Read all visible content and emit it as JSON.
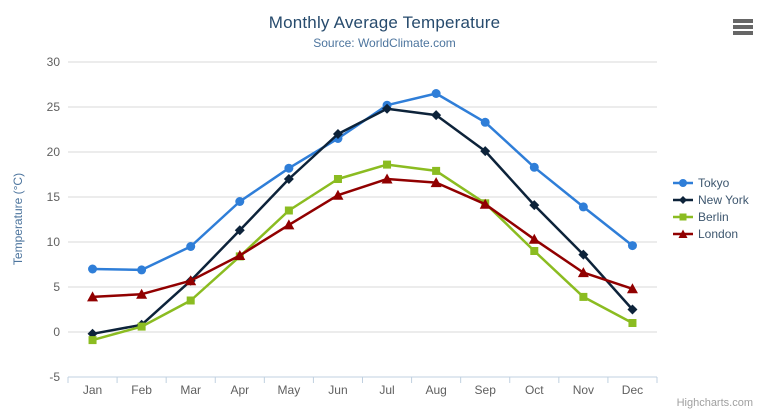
{
  "header": {
    "title": "Monthly Average Temperature",
    "subtitle": "Source: WorldClimate.com"
  },
  "toolbar": {
    "context_menu_icon": "hamburger-icon"
  },
  "credit": {
    "label": "Highcharts.com"
  },
  "palette": {
    "title_color": "#274b6d",
    "subtitle_color": "#4d759e",
    "axis_label_color": "#606060",
    "axis_title_color": "#4d759e",
    "legend_text_color": "#3e576f",
    "grid_color": "#d8d8d8",
    "axis_line_color": "#c0d0e0",
    "credit_color": "#a0a0a0",
    "menu_icon_color": "#666666"
  },
  "chart_data": {
    "type": "line",
    "title": "Monthly Average Temperature",
    "subtitle": "Source: WorldClimate.com",
    "categories": [
      "Jan",
      "Feb",
      "Mar",
      "Apr",
      "May",
      "Jun",
      "Jul",
      "Aug",
      "Sep",
      "Oct",
      "Nov",
      "Dec"
    ],
    "xlabel": "",
    "ylabel": "Temperature (°C)",
    "ylim": [
      -5,
      30
    ],
    "ytick_step": 5,
    "grid": true,
    "legend_position": "right",
    "series": [
      {
        "name": "Tokyo",
        "color": "#2f7ed8",
        "marker": "circle",
        "values": [
          7.0,
          6.9,
          9.5,
          14.5,
          18.2,
          21.5,
          25.2,
          26.5,
          23.3,
          18.3,
          13.9,
          9.6
        ]
      },
      {
        "name": "New York",
        "color": "#0d233a",
        "marker": "diamond",
        "values": [
          -0.2,
          0.8,
          5.7,
          11.3,
          17.0,
          22.0,
          24.8,
          24.1,
          20.1,
          14.1,
          8.6,
          2.5
        ]
      },
      {
        "name": "Berlin",
        "color": "#8bbc21",
        "marker": "square",
        "values": [
          -0.9,
          0.6,
          3.5,
          8.4,
          13.5,
          17.0,
          18.6,
          17.9,
          14.3,
          9.0,
          3.9,
          1.0
        ]
      },
      {
        "name": "London",
        "color": "#910000",
        "marker": "triangle",
        "values": [
          3.9,
          4.2,
          5.7,
          8.5,
          11.9,
          15.2,
          17.0,
          16.6,
          14.2,
          10.3,
          6.6,
          4.8
        ]
      }
    ]
  }
}
